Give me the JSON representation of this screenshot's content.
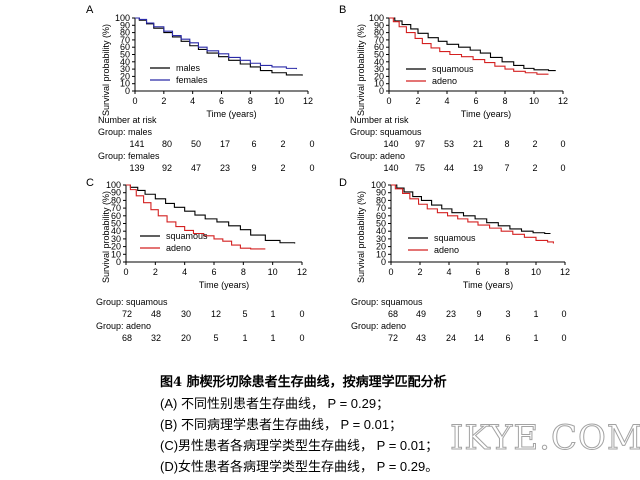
{
  "chart_data": [
    {
      "type": "line",
      "panel": "A",
      "ylabel": "Survival probability (%)",
      "xlabel": "Time (years)",
      "xlim": [
        0,
        12
      ],
      "ylim": [
        0,
        100
      ],
      "xticks": [
        0,
        2,
        4,
        6,
        8,
        10,
        12
      ],
      "yticks": [
        0,
        10,
        20,
        30,
        40,
        50,
        60,
        70,
        80,
        90,
        100
      ],
      "legend": "lower-left",
      "series": [
        {
          "name": "males",
          "color": "#000000",
          "x": [
            0,
            0.3,
            0.8,
            1.3,
            2,
            2.6,
            3.2,
            3.8,
            4.4,
            5,
            5.8,
            6.5,
            7.3,
            8,
            8.7,
            9.5,
            10.5,
            11.6
          ],
          "y": [
            100,
            97,
            92,
            86,
            80,
            74,
            68,
            62,
            57,
            52,
            47,
            42,
            37,
            33,
            28,
            25,
            22,
            21
          ]
        },
        {
          "name": "females",
          "color": "#2a2aa8",
          "x": [
            0,
            0.3,
            0.8,
            1.3,
            2,
            2.6,
            3.2,
            3.8,
            4.4,
            5,
            5.8,
            6.5,
            7.3,
            8,
            8.7,
            9.5,
            10.5,
            11.2
          ],
          "y": [
            100,
            98,
            93,
            88,
            82,
            76,
            71,
            66,
            60,
            55,
            51,
            46,
            42,
            38,
            35,
            33,
            31,
            30
          ]
        }
      ],
      "risk": {
        "title": "Number at risk",
        "groups": [
          {
            "label": "Group: males",
            "values": [
              "141",
              "80",
              "50",
              "17",
              "6",
              "2",
              "0"
            ]
          },
          {
            "label": "Group: females",
            "values": [
              "139",
              "92",
              "47",
              "23",
              "9",
              "2",
              "0"
            ]
          }
        ]
      }
    },
    {
      "type": "line",
      "panel": "B",
      "ylabel": "Survival probability (%)",
      "xlabel": "Time (years)",
      "xlim": [
        0,
        12
      ],
      "ylim": [
        0,
        100
      ],
      "xticks": [
        0,
        2,
        4,
        6,
        8,
        10,
        12
      ],
      "yticks": [
        0,
        10,
        20,
        30,
        40,
        50,
        60,
        70,
        80,
        90,
        100
      ],
      "legend": "lower-right",
      "series": [
        {
          "name": "squamous",
          "color": "#000000",
          "x": [
            0,
            0.4,
            0.9,
            1.5,
            2,
            2.7,
            3.4,
            4,
            4.8,
            5.6,
            6.3,
            7,
            7.8,
            8.6,
            9.3,
            10,
            11,
            11.5
          ],
          "y": [
            100,
            96,
            91,
            85,
            79,
            73,
            68,
            64,
            60,
            56,
            52,
            46,
            40,
            35,
            31,
            29,
            28,
            28
          ]
        },
        {
          "name": "adeno",
          "color": "#d42020",
          "x": [
            0,
            0.3,
            0.7,
            1.2,
            1.8,
            2.3,
            2.9,
            3.5,
            4.2,
            5,
            5.8,
            6.6,
            7.3,
            8,
            8.6,
            9.4,
            10.2,
            11
          ],
          "y": [
            100,
            95,
            88,
            80,
            72,
            65,
            59,
            54,
            50,
            47,
            43,
            39,
            34,
            30,
            27,
            25,
            23,
            23
          ]
        }
      ],
      "risk": {
        "title": "Number at risk",
        "groups": [
          {
            "label": "Group: squamous",
            "values": [
              "140",
              "97",
              "53",
              "21",
              "8",
              "2",
              "0"
            ]
          },
          {
            "label": "Group: adeno",
            "values": [
              "140",
              "75",
              "44",
              "19",
              "7",
              "2",
              "0"
            ]
          }
        ]
      }
    },
    {
      "type": "line",
      "panel": "C",
      "ylabel": "Survival probability (%)",
      "xlabel": "Time (years)",
      "xlim": [
        0,
        12
      ],
      "ylim": [
        0,
        100
      ],
      "xticks": [
        0,
        2,
        4,
        6,
        8,
        10,
        12
      ],
      "yticks": [
        0,
        10,
        20,
        30,
        40,
        50,
        60,
        70,
        80,
        90,
        100
      ],
      "legend": "lower-left",
      "series": [
        {
          "name": "squamous",
          "color": "#000000",
          "x": [
            0,
            0.3,
            0.8,
            1.3,
            2,
            2.7,
            3.3,
            4,
            4.7,
            5.4,
            6.2,
            7,
            7.8,
            8.5,
            9.5,
            10.5,
            11.5
          ],
          "y": [
            100,
            97,
            93,
            88,
            82,
            76,
            71,
            66,
            61,
            56,
            52,
            47,
            42,
            35,
            28,
            25,
            24
          ]
        },
        {
          "name": "adeno",
          "color": "#d42020",
          "x": [
            0,
            0.3,
            0.7,
            1.2,
            1.7,
            2.2,
            2.8,
            3.4,
            4,
            4.6,
            5.3,
            6,
            6.6,
            7.2,
            7.8,
            8.5,
            9.5
          ],
          "y": [
            100,
            94,
            86,
            77,
            68,
            60,
            52,
            46,
            41,
            37,
            34,
            30,
            27,
            22,
            18,
            17,
            17
          ]
        }
      ],
      "risk": {
        "title": "",
        "groups": [
          {
            "label": "Group: squamous",
            "values": [
              "72",
              "48",
              "30",
              "12",
              "5",
              "1",
              "0"
            ]
          },
          {
            "label": "Group: adeno",
            "values": [
              "68",
              "32",
              "20",
              "5",
              "1",
              "1",
              "0"
            ]
          }
        ]
      }
    },
    {
      "type": "line",
      "panel": "D",
      "ylabel": "Survival probability (%)",
      "xlabel": "Time (years)",
      "xlim": [
        0,
        12
      ],
      "ylim": [
        0,
        100
      ],
      "xticks": [
        0,
        2,
        4,
        6,
        8,
        10,
        12
      ],
      "yticks": [
        0,
        10,
        20,
        30,
        40,
        50,
        60,
        70,
        80,
        90,
        100
      ],
      "legend": "lower-right",
      "series": [
        {
          "name": "squamous",
          "color": "#000000",
          "x": [
            0,
            0.4,
            0.9,
            1.5,
            2.1,
            2.8,
            3.5,
            4.2,
            5,
            5.8,
            6.6,
            7.4,
            8.2,
            9,
            9.8,
            10.6,
            11
          ],
          "y": [
            100,
            96,
            91,
            85,
            80,
            74,
            69,
            64,
            60,
            56,
            51,
            47,
            43,
            40,
            38,
            37,
            37
          ]
        },
        {
          "name": "adeno",
          "color": "#d42020",
          "x": [
            0,
            0.3,
            0.8,
            1.3,
            1.9,
            2.5,
            3.2,
            3.9,
            4.6,
            5.3,
            6,
            6.8,
            7.6,
            8.4,
            9.2,
            10,
            10.8,
            11.2
          ],
          "y": [
            100,
            95,
            89,
            82,
            75,
            69,
            64,
            60,
            56,
            52,
            48,
            44,
            40,
            36,
            32,
            28,
            26,
            24
          ]
        }
      ],
      "risk": {
        "title": "",
        "groups": [
          {
            "label": "Group: squamous",
            "values": [
              "68",
              "49",
              "23",
              "9",
              "3",
              "1",
              "0"
            ]
          },
          {
            "label": "Group: adeno",
            "values": [
              "72",
              "43",
              "24",
              "14",
              "6",
              "1",
              "0"
            ]
          }
        ]
      }
    }
  ],
  "caption": {
    "title": "图4 肺楔形切除患者生存曲线，按病理学匹配分析",
    "lines": [
      "(A) 不同性别患者生存曲线， P = 0.29；",
      "(B) 不同病理学患者生存曲线， P = 0.01；",
      "(C)男性患者各病理学类型生存曲线， P = 0.01；",
      "(D)女性患者各病理学类型生存曲线， P = 0.29。"
    ]
  },
  "watermark": "IKYE.COM"
}
